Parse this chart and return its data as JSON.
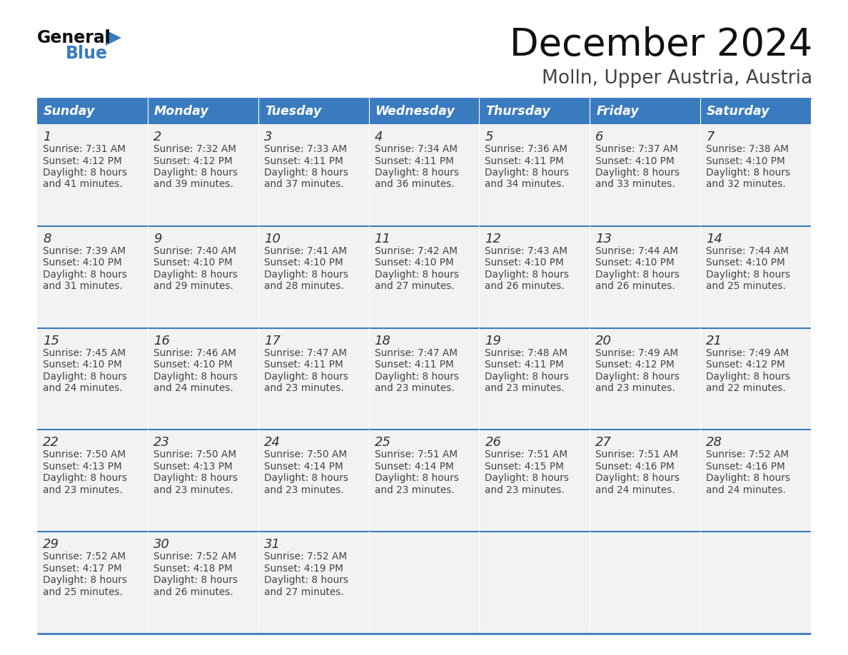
{
  "title": "December 2024",
  "subtitle": "Molln, Upper Austria, Austria",
  "header_color": "#3a7bbf",
  "header_text_color": "#ffffff",
  "cell_bg_even": "#f2f2f2",
  "cell_bg_odd": "#f2f2f2",
  "border_color": "#3a7bbf",
  "days_of_week": [
    "Sunday",
    "Monday",
    "Tuesday",
    "Wednesday",
    "Thursday",
    "Friday",
    "Saturday"
  ],
  "calendar_data": [
    [
      {
        "day": "1",
        "sunrise": "7:31 AM",
        "sunset": "4:12 PM",
        "daylight_h": "8 hours",
        "daylight_m": "and 41 minutes."
      },
      {
        "day": "2",
        "sunrise": "7:32 AM",
        "sunset": "4:12 PM",
        "daylight_h": "8 hours",
        "daylight_m": "and 39 minutes."
      },
      {
        "day": "3",
        "sunrise": "7:33 AM",
        "sunset": "4:11 PM",
        "daylight_h": "8 hours",
        "daylight_m": "and 37 minutes."
      },
      {
        "day": "4",
        "sunrise": "7:34 AM",
        "sunset": "4:11 PM",
        "daylight_h": "8 hours",
        "daylight_m": "and 36 minutes."
      },
      {
        "day": "5",
        "sunrise": "7:36 AM",
        "sunset": "4:11 PM",
        "daylight_h": "8 hours",
        "daylight_m": "and 34 minutes."
      },
      {
        "day": "6",
        "sunrise": "7:37 AM",
        "sunset": "4:10 PM",
        "daylight_h": "8 hours",
        "daylight_m": "and 33 minutes."
      },
      {
        "day": "7",
        "sunrise": "7:38 AM",
        "sunset": "4:10 PM",
        "daylight_h": "8 hours",
        "daylight_m": "and 32 minutes."
      }
    ],
    [
      {
        "day": "8",
        "sunrise": "7:39 AM",
        "sunset": "4:10 PM",
        "daylight_h": "8 hours",
        "daylight_m": "and 31 minutes."
      },
      {
        "day": "9",
        "sunrise": "7:40 AM",
        "sunset": "4:10 PM",
        "daylight_h": "8 hours",
        "daylight_m": "and 29 minutes."
      },
      {
        "day": "10",
        "sunrise": "7:41 AM",
        "sunset": "4:10 PM",
        "daylight_h": "8 hours",
        "daylight_m": "and 28 minutes."
      },
      {
        "day": "11",
        "sunrise": "7:42 AM",
        "sunset": "4:10 PM",
        "daylight_h": "8 hours",
        "daylight_m": "and 27 minutes."
      },
      {
        "day": "12",
        "sunrise": "7:43 AM",
        "sunset": "4:10 PM",
        "daylight_h": "8 hours",
        "daylight_m": "and 26 minutes."
      },
      {
        "day": "13",
        "sunrise": "7:44 AM",
        "sunset": "4:10 PM",
        "daylight_h": "8 hours",
        "daylight_m": "and 26 minutes."
      },
      {
        "day": "14",
        "sunrise": "7:44 AM",
        "sunset": "4:10 PM",
        "daylight_h": "8 hours",
        "daylight_m": "and 25 minutes."
      }
    ],
    [
      {
        "day": "15",
        "sunrise": "7:45 AM",
        "sunset": "4:10 PM",
        "daylight_h": "8 hours",
        "daylight_m": "and 24 minutes."
      },
      {
        "day": "16",
        "sunrise": "7:46 AM",
        "sunset": "4:10 PM",
        "daylight_h": "8 hours",
        "daylight_m": "and 24 minutes."
      },
      {
        "day": "17",
        "sunrise": "7:47 AM",
        "sunset": "4:11 PM",
        "daylight_h": "8 hours",
        "daylight_m": "and 23 minutes."
      },
      {
        "day": "18",
        "sunrise": "7:47 AM",
        "sunset": "4:11 PM",
        "daylight_h": "8 hours",
        "daylight_m": "and 23 minutes."
      },
      {
        "day": "19",
        "sunrise": "7:48 AM",
        "sunset": "4:11 PM",
        "daylight_h": "8 hours",
        "daylight_m": "and 23 minutes."
      },
      {
        "day": "20",
        "sunrise": "7:49 AM",
        "sunset": "4:12 PM",
        "daylight_h": "8 hours",
        "daylight_m": "and 23 minutes."
      },
      {
        "day": "21",
        "sunrise": "7:49 AM",
        "sunset": "4:12 PM",
        "daylight_h": "8 hours",
        "daylight_m": "and 22 minutes."
      }
    ],
    [
      {
        "day": "22",
        "sunrise": "7:50 AM",
        "sunset": "4:13 PM",
        "daylight_h": "8 hours",
        "daylight_m": "and 23 minutes."
      },
      {
        "day": "23",
        "sunrise": "7:50 AM",
        "sunset": "4:13 PM",
        "daylight_h": "8 hours",
        "daylight_m": "and 23 minutes."
      },
      {
        "day": "24",
        "sunrise": "7:50 AM",
        "sunset": "4:14 PM",
        "daylight_h": "8 hours",
        "daylight_m": "and 23 minutes."
      },
      {
        "day": "25",
        "sunrise": "7:51 AM",
        "sunset": "4:14 PM",
        "daylight_h": "8 hours",
        "daylight_m": "and 23 minutes."
      },
      {
        "day": "26",
        "sunrise": "7:51 AM",
        "sunset": "4:15 PM",
        "daylight_h": "8 hours",
        "daylight_m": "and 23 minutes."
      },
      {
        "day": "27",
        "sunrise": "7:51 AM",
        "sunset": "4:16 PM",
        "daylight_h": "8 hours",
        "daylight_m": "and 24 minutes."
      },
      {
        "day": "28",
        "sunrise": "7:52 AM",
        "sunset": "4:16 PM",
        "daylight_h": "8 hours",
        "daylight_m": "and 24 minutes."
      }
    ],
    [
      {
        "day": "29",
        "sunrise": "7:52 AM",
        "sunset": "4:17 PM",
        "daylight_h": "8 hours",
        "daylight_m": "and 25 minutes."
      },
      {
        "day": "30",
        "sunrise": "7:52 AM",
        "sunset": "4:18 PM",
        "daylight_h": "8 hours",
        "daylight_m": "and 26 minutes."
      },
      {
        "day": "31",
        "sunrise": "7:52 AM",
        "sunset": "4:19 PM",
        "daylight_h": "8 hours",
        "daylight_m": "and 27 minutes."
      },
      null,
      null,
      null,
      null
    ]
  ],
  "logo_general_color": "#111111",
  "logo_blue_color": "#3a7bbf",
  "title_color": "#111111",
  "subtitle_color": "#444444",
  "day_number_color": "#333333",
  "cell_text_color": "#444444"
}
